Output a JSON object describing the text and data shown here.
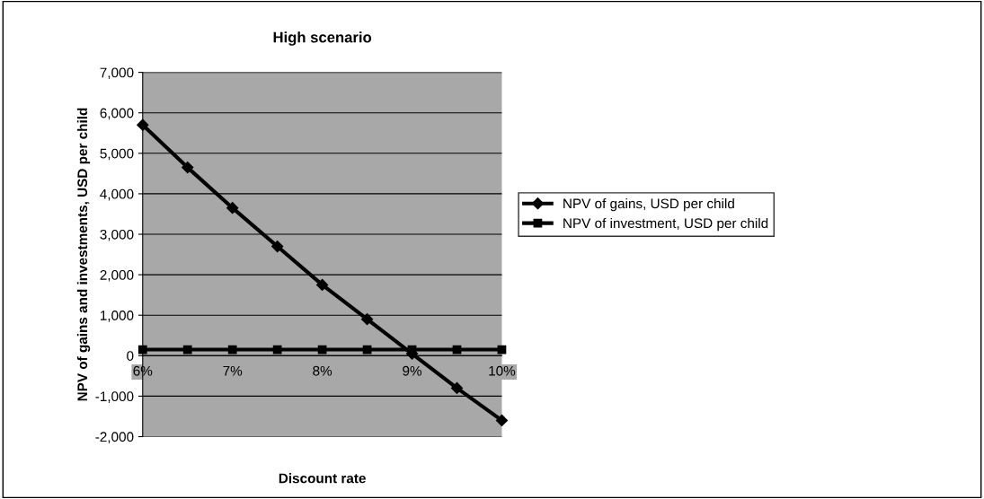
{
  "chart_data": {
    "type": "line",
    "title": "High scenario",
    "xlabel": "Discount rate",
    "ylabel": "NPV of gains and investments, USD per child",
    "categories": [
      "6%",
      null,
      "7%",
      null,
      "8%",
      null,
      "9%",
      null,
      "10%"
    ],
    "series": [
      {
        "name": "NPV of gains, USD per child",
        "color": "#000000",
        "marker": "diamond",
        "values": [
          5700,
          4650,
          3650,
          2700,
          1750,
          900,
          50,
          -800,
          -1600
        ]
      },
      {
        "name": "NPV of investment, USD per child",
        "color": "#000000",
        "marker": "square",
        "values": [
          150,
          150,
          150,
          150,
          150,
          150,
          150,
          150,
          150
        ]
      }
    ],
    "ylim": [
      -2000,
      7000
    ],
    "yticks": [
      {
        "value": -2000,
        "label": "-2,000"
      },
      {
        "value": -1000,
        "label": "-1,000"
      },
      0,
      {
        "value": 1000,
        "label": "1,000"
      },
      {
        "value": 2000,
        "label": "2,000"
      },
      {
        "value": 3000,
        "label": "3,000"
      },
      {
        "value": 4000,
        "label": "4,000"
      },
      {
        "value": 5000,
        "label": "5,000"
      },
      {
        "value": 6000,
        "label": "6,000"
      },
      {
        "value": 7000,
        "label": "7,000"
      }
    ],
    "grid": "y",
    "legend": "right",
    "line_style": "solid"
  }
}
